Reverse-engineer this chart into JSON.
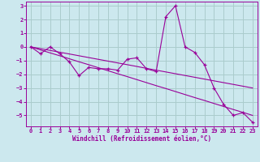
{
  "xlabel": "Windchill (Refroidissement éolien,°C)",
  "bg_color": "#cce8ee",
  "grid_color": "#aacccc",
  "line_color": "#990099",
  "x_data": [
    0,
    1,
    2,
    3,
    4,
    5,
    6,
    7,
    8,
    9,
    10,
    11,
    12,
    13,
    14,
    15,
    16,
    17,
    18,
    19,
    20,
    21,
    22,
    23
  ],
  "y_main": [
    0.0,
    -0.5,
    0.0,
    -0.5,
    -1.1,
    -2.1,
    -1.5,
    -1.6,
    -1.6,
    -1.7,
    -0.9,
    -0.8,
    -1.6,
    -1.8,
    2.2,
    3.0,
    0.0,
    -0.4,
    -1.3,
    -3.0,
    -4.2,
    -5.0,
    -4.8,
    -5.5
  ],
  "y_line1": [
    0.0,
    -0.22,
    -0.44,
    -0.65,
    -0.87,
    -1.09,
    -1.3,
    -1.52,
    -1.74,
    -1.96,
    -2.17,
    -2.39,
    -2.61,
    -2.83,
    -3.04,
    -3.26,
    -3.48,
    -3.7,
    -3.91,
    -4.13,
    -4.35,
    -4.57,
    -4.78,
    -5.0
  ],
  "y_line2": [
    0.0,
    -0.13,
    -0.26,
    -0.39,
    -0.52,
    -0.65,
    -0.78,
    -0.91,
    -1.04,
    -1.17,
    -1.3,
    -1.43,
    -1.57,
    -1.7,
    -1.83,
    -1.96,
    -2.09,
    -2.22,
    -2.35,
    -2.48,
    -2.61,
    -2.74,
    -2.87,
    -3.0
  ],
  "ylim": [
    -5.8,
    3.3
  ],
  "xlim": [
    -0.5,
    23.5
  ],
  "yticks": [
    -5,
    -4,
    -3,
    -2,
    -1,
    0,
    1,
    2,
    3
  ],
  "xticks": [
    0,
    1,
    2,
    3,
    4,
    5,
    6,
    7,
    8,
    9,
    10,
    11,
    12,
    13,
    14,
    15,
    16,
    17,
    18,
    19,
    20,
    21,
    22,
    23
  ],
  "xlabel_fontsize": 5.5,
  "tick_fontsize": 5.0
}
